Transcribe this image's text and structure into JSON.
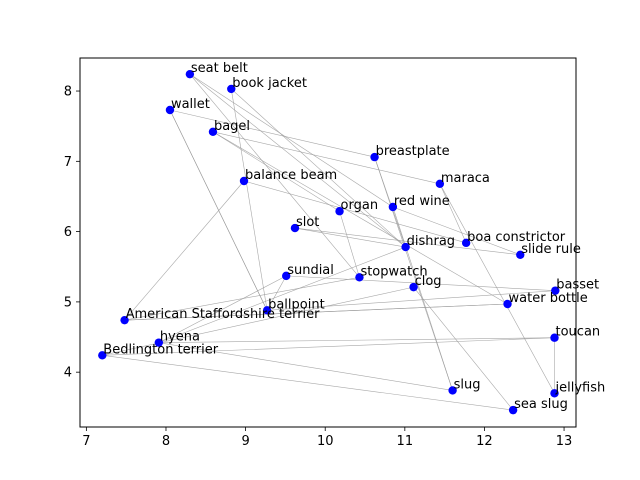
{
  "chart_data": {
    "type": "scatter",
    "title": "",
    "xlabel": "",
    "ylabel": "",
    "xlim": [
      6.92,
      13.15
    ],
    "ylim": [
      3.22,
      8.47
    ],
    "xticks": [
      7,
      8,
      9,
      10,
      11,
      12,
      13
    ],
    "yticks": [
      4,
      5,
      6,
      7,
      8
    ],
    "grid": false,
    "point_color": "#0000ff",
    "edge_color": "#999999",
    "points": [
      {
        "label": "seat belt",
        "x": 8.3,
        "y": 8.24
      },
      {
        "label": "book jacket",
        "x": 8.82,
        "y": 8.03
      },
      {
        "label": "wallet",
        "x": 8.05,
        "y": 7.73
      },
      {
        "label": "bagel",
        "x": 8.59,
        "y": 7.42
      },
      {
        "label": "breastplate",
        "x": 10.62,
        "y": 7.06
      },
      {
        "label": "balance beam",
        "x": 8.98,
        "y": 6.72
      },
      {
        "label": "maraca",
        "x": 11.44,
        "y": 6.68
      },
      {
        "label": "red wine",
        "x": 10.85,
        "y": 6.35
      },
      {
        "label": "organ",
        "x": 10.18,
        "y": 6.29
      },
      {
        "label": "slot",
        "x": 9.62,
        "y": 6.05
      },
      {
        "label": "boa constrictor",
        "x": 11.77,
        "y": 5.84
      },
      {
        "label": "dishrag",
        "x": 11.01,
        "y": 5.78
      },
      {
        "label": "slide rule",
        "x": 12.45,
        "y": 5.67
      },
      {
        "label": "sundial",
        "x": 9.51,
        "y": 5.37
      },
      {
        "label": "stopwatch",
        "x": 10.43,
        "y": 5.35
      },
      {
        "label": "clog",
        "x": 11.11,
        "y": 5.21
      },
      {
        "label": "basset",
        "x": 12.89,
        "y": 5.16
      },
      {
        "label": "water bottle",
        "x": 12.29,
        "y": 4.97
      },
      {
        "label": "ballpoint",
        "x": 9.27,
        "y": 4.88
      },
      {
        "label": "American Staffordshire terrier",
        "x": 7.48,
        "y": 4.74
      },
      {
        "label": "toucan",
        "x": 12.88,
        "y": 4.49
      },
      {
        "label": "hyena",
        "x": 7.91,
        "y": 4.42
      },
      {
        "label": "Bedlington terrier",
        "x": 7.2,
        "y": 4.24
      },
      {
        "label": "slug",
        "x": 11.6,
        "y": 3.74
      },
      {
        "label": "jellyfish",
        "x": 12.88,
        "y": 3.7
      },
      {
        "label": "sea slug",
        "x": 12.36,
        "y": 3.46
      }
    ],
    "edges": [
      [
        0,
        7
      ],
      [
        0,
        11
      ],
      [
        0,
        14
      ],
      [
        1,
        11
      ],
      [
        1,
        18
      ],
      [
        2,
        4
      ],
      [
        2,
        18
      ],
      [
        3,
        17
      ],
      [
        3,
        6
      ],
      [
        4,
        11
      ],
      [
        4,
        23
      ],
      [
        5,
        19
      ],
      [
        5,
        10
      ],
      [
        6,
        10
      ],
      [
        6,
        24
      ],
      [
        8,
        3
      ],
      [
        8,
        14
      ],
      [
        9,
        11
      ],
      [
        9,
        12
      ],
      [
        13,
        16
      ],
      [
        13,
        21
      ],
      [
        15,
        22
      ],
      [
        15,
        25
      ],
      [
        18,
        16
      ],
      [
        18,
        2
      ],
      [
        19,
        17
      ],
      [
        20,
        22
      ],
      [
        20,
        21
      ],
      [
        21,
        23
      ],
      [
        22,
        25
      ],
      [
        23,
        7
      ],
      [
        24,
        20
      ],
      [
        17,
        19
      ],
      [
        12,
        7
      ],
      [
        13,
        18
      ],
      [
        11,
        21
      ],
      [
        14,
        19
      ]
    ]
  }
}
